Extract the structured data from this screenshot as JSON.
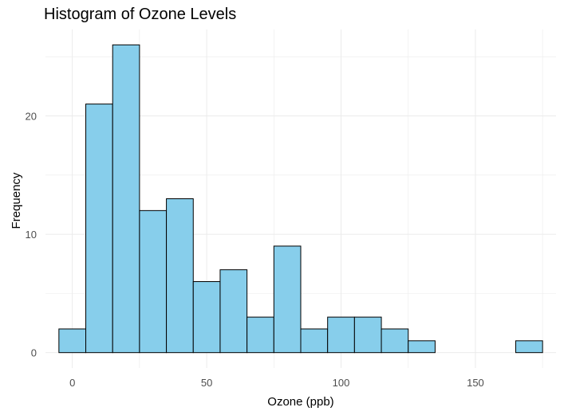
{
  "chart_data": {
    "type": "bar",
    "title": "Histogram of Ozone Levels",
    "xlabel": "Ozone (ppb)",
    "ylabel": "Frequency",
    "bin_width": 10,
    "bins": [
      {
        "x0": -5,
        "x1": 5,
        "count": 2
      },
      {
        "x0": 5,
        "x1": 15,
        "count": 21
      },
      {
        "x0": 15,
        "x1": 25,
        "count": 26
      },
      {
        "x0": 25,
        "x1": 35,
        "count": 12
      },
      {
        "x0": 35,
        "x1": 45,
        "count": 13
      },
      {
        "x0": 45,
        "x1": 55,
        "count": 6
      },
      {
        "x0": 55,
        "x1": 65,
        "count": 7
      },
      {
        "x0": 65,
        "x1": 75,
        "count": 3
      },
      {
        "x0": 75,
        "x1": 85,
        "count": 9
      },
      {
        "x0": 85,
        "x1": 95,
        "count": 2
      },
      {
        "x0": 95,
        "x1": 105,
        "count": 3
      },
      {
        "x0": 105,
        "x1": 115,
        "count": 3
      },
      {
        "x0": 115,
        "x1": 125,
        "count": 2
      },
      {
        "x0": 125,
        "x1": 135,
        "count": 1
      },
      {
        "x0": 135,
        "x1": 145,
        "count": 0
      },
      {
        "x0": 145,
        "x1": 155,
        "count": 0
      },
      {
        "x0": 155,
        "x1": 165,
        "count": 0
      },
      {
        "x0": 165,
        "x1": 175,
        "count": 1
      }
    ],
    "xlim": [
      -10,
      180
    ],
    "ylim": [
      -1.3,
      27.3
    ],
    "xticks": [
      0,
      50,
      100,
      150
    ],
    "yticks": [
      0,
      10,
      20
    ],
    "bar_fill": "#87CEEB",
    "bar_stroke": "#000000",
    "grid": true,
    "grid_color": "#ebebeb",
    "background": "#ffffff"
  }
}
